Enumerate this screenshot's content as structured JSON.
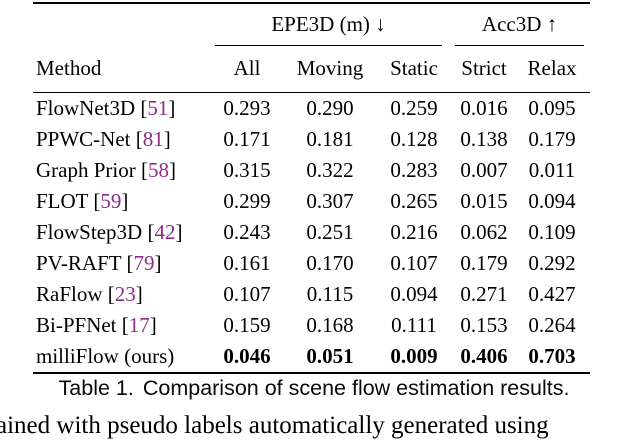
{
  "colors": {
    "text": "#000000",
    "citation": "#8d2c8d",
    "rule": "#000000",
    "background": "#ffffff"
  },
  "table": {
    "caption_label": "Table 1.",
    "caption_text": "Comparison of scene flow estimation results.",
    "group_headers": [
      {
        "label": "EPE3D (m) ↓",
        "span": 3
      },
      {
        "label": "Acc3D ↑",
        "span": 2
      }
    ],
    "columns": [
      "Method",
      "All",
      "Moving",
      "Static",
      "Strict",
      "Relax"
    ],
    "rows": [
      {
        "name": "FlowNet3D",
        "cite": "51",
        "values": [
          "0.293",
          "0.290",
          "0.259",
          "0.016",
          "0.095"
        ],
        "bold": false
      },
      {
        "name": "PPWC-Net",
        "cite": "81",
        "values": [
          "0.171",
          "0.181",
          "0.128",
          "0.138",
          "0.179"
        ],
        "bold": false
      },
      {
        "name": "Graph Prior",
        "cite": "58",
        "values": [
          "0.315",
          "0.322",
          "0.283",
          "0.007",
          "0.011"
        ],
        "bold": false
      },
      {
        "name": "FLOT",
        "cite": "59",
        "values": [
          "0.299",
          "0.307",
          "0.265",
          "0.015",
          "0.094"
        ],
        "bold": false
      },
      {
        "name": "FlowStep3D",
        "cite": "42",
        "values": [
          "0.243",
          "0.251",
          "0.216",
          "0.062",
          "0.109"
        ],
        "bold": false
      },
      {
        "name": "PV-RAFT",
        "cite": "79",
        "values": [
          "0.161",
          "0.170",
          "0.107",
          "0.179",
          "0.292"
        ],
        "bold": false
      },
      {
        "name": "RaFlow",
        "cite": "23",
        "values": [
          "0.107",
          "0.115",
          "0.094",
          "0.271",
          "0.427"
        ],
        "bold": false
      },
      {
        "name": "Bi-PFNet",
        "cite": "17",
        "values": [
          "0.159",
          "0.168",
          "0.111",
          "0.153",
          "0.264"
        ],
        "bold": false
      },
      {
        "name": "milliFlow (ours)",
        "cite": null,
        "values": [
          "0.046",
          "0.051",
          "0.009",
          "0.406",
          "0.703"
        ],
        "bold": true
      }
    ]
  },
  "body_text": {
    "fragment": "ained with pseudo labels automatically generated using"
  }
}
